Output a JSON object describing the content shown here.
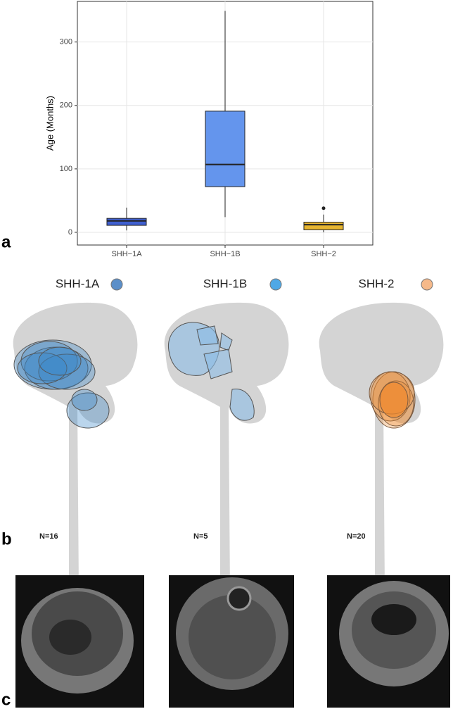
{
  "chart_data": {
    "type": "box",
    "ylabel": "Age (Months)",
    "categories": [
      "SHH−1A",
      "SHH−1B",
      "SHH−2"
    ],
    "series": [
      {
        "name": "SHH−1A",
        "color": "#3f5fcf",
        "low": 3,
        "q1": 11,
        "median": 18,
        "q3": 22,
        "high": 39,
        "outliers": []
      },
      {
        "name": "SHH−1B",
        "color": "#6495ed",
        "low": 24,
        "q1": 72,
        "median": 107,
        "q3": 191,
        "high": 349,
        "outliers": []
      },
      {
        "name": "SHH−2",
        "color": "#e6b530",
        "low": 0,
        "q1": 4,
        "median": 12,
        "q3": 16,
        "high": 28,
        "outliers": [
          38
        ]
      }
    ],
    "ylim": [
      -20,
      364
    ],
    "yticks": [
      0,
      100,
      200,
      300
    ],
    "grid": true
  },
  "panel_labels": [
    "a",
    "b",
    "c"
  ],
  "locations": [
    {
      "title": "SHH-1A",
      "n": "N=16"
    },
    {
      "title": "SHH-1B",
      "n": "N=5"
    },
    {
      "title": "SHH-2",
      "n": "N=20"
    }
  ]
}
